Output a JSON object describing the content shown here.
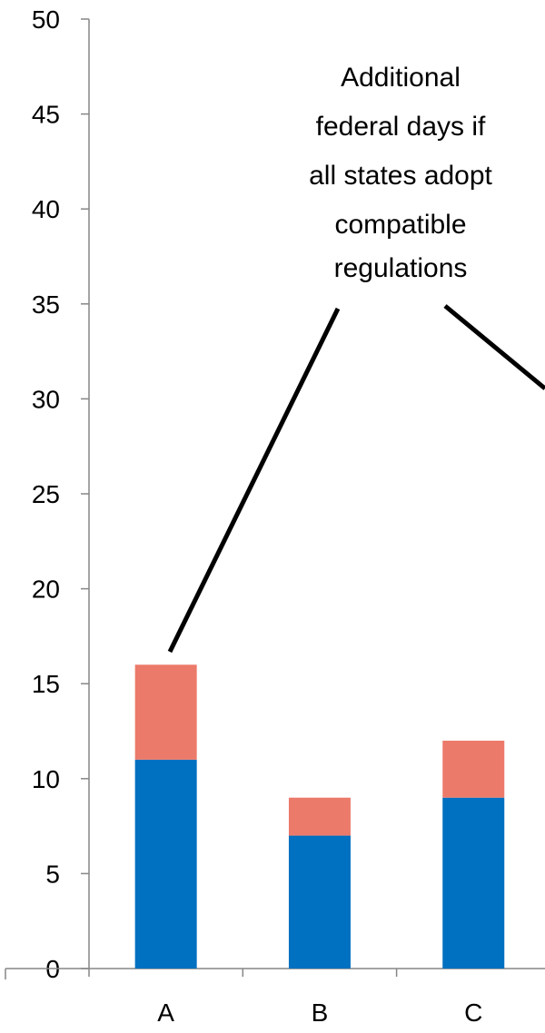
{
  "chart_data": {
    "type": "bar",
    "stacked": true,
    "categories": [
      "A",
      "B",
      "C"
    ],
    "series": [
      {
        "values": [
          11,
          7,
          9
        ],
        "color": "#0070c0"
      },
      {
        "values": [
          5,
          2,
          3
        ],
        "color": "#ec7a6a"
      }
    ],
    "ylim": [
      0,
      50
    ],
    "yticks": [
      "0",
      "5",
      "10",
      "15",
      "20",
      "25",
      "30",
      "35",
      "40",
      "45",
      "50"
    ],
    "annotation": {
      "lines": [
        "Additional",
        "federal days if",
        "all states adopt",
        "compatible",
        "regulations"
      ]
    },
    "legend": "none",
    "grid": false
  }
}
